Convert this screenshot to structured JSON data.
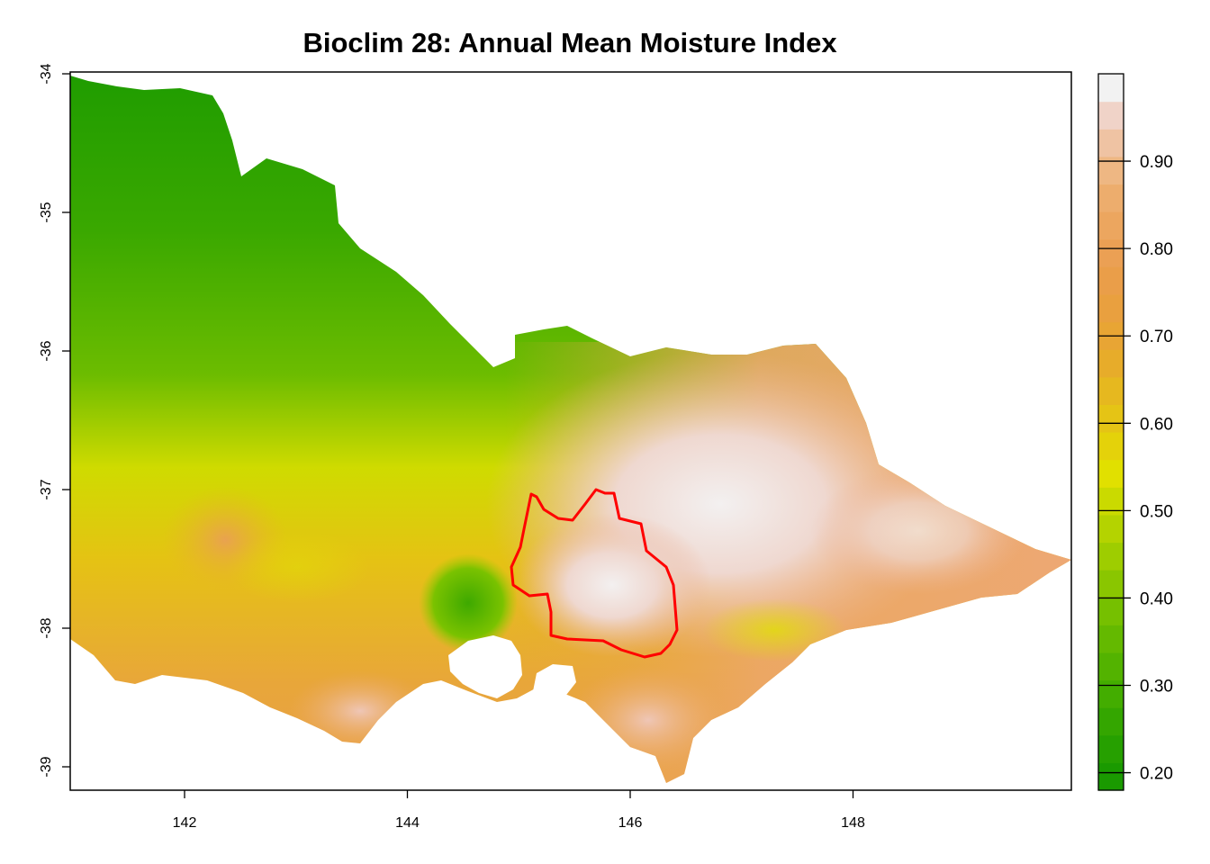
{
  "title": "Bioclim 28: Annual Mean Moisture Index",
  "chart_data": {
    "type": "heatmap",
    "title": "Bioclim 28: Annual Mean Moisture Index",
    "xlim": [
      141.0,
      150.0
    ],
    "ylim": [
      -39.15,
      -34.0
    ],
    "x_ticks": [
      "142",
      "144",
      "146",
      "148"
    ],
    "y_ticks": [
      "-34",
      "-35",
      "-36",
      "-37",
      "-38",
      "-39"
    ],
    "legend": {
      "position": "right",
      "range": [
        0.18,
        1.0
      ],
      "tick_labels": [
        "0.20",
        "0.30",
        "0.40",
        "0.50",
        "0.60",
        "0.70",
        "0.80",
        "0.90"
      ],
      "colors": [
        "#1a9a00",
        "#26a000",
        "#34a600",
        "#43ad00",
        "#53b300",
        "#64b900",
        "#76c000",
        "#8ac600",
        "#9ecd00",
        "#b4d300",
        "#cada00",
        "#e1e000",
        "#e4d20a",
        "#e5c415",
        "#e6b81f",
        "#e7ac2a",
        "#e8a534",
        "#e9a03f",
        "#ea9e49",
        "#eba054",
        "#eca65f",
        "#edad6d",
        "#eeb783",
        "#efc3a3",
        "#f0d3c8",
        "#f2f2f2"
      ]
    },
    "outline_color": "#ff0000",
    "gradient_summary": "green in the northwest, yellow to orange across central and southwestern Victoria, pink to white across the eastern highlands"
  }
}
